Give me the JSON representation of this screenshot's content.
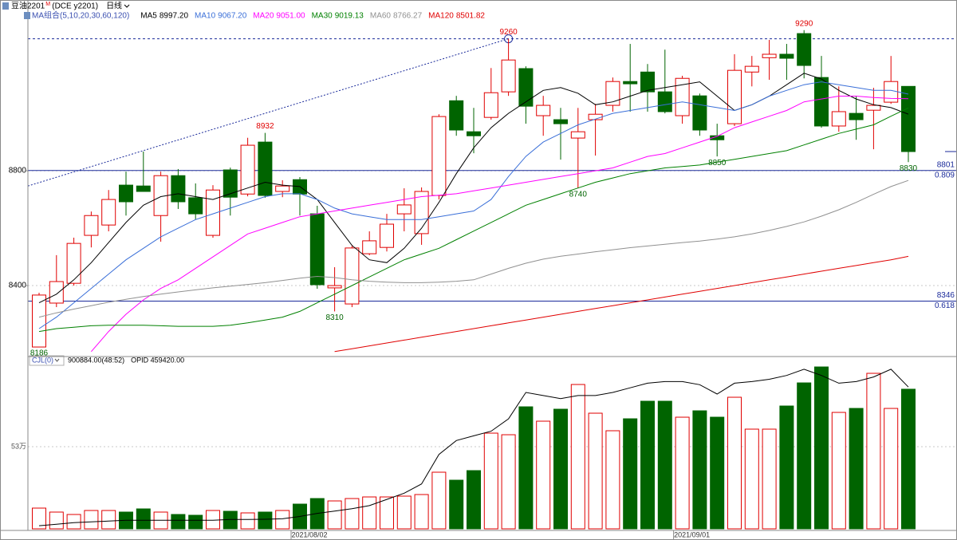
{
  "header": {
    "symbol": "豆油2201",
    "badge": "M",
    "exchange": "(DCE  y2201)",
    "period": "日线"
  },
  "chart_data": [
    {
      "type": "candlestick",
      "categories": [
        null,
        null,
        null,
        null,
        null,
        null,
        null,
        null,
        null,
        null,
        null,
        null,
        null,
        null,
        null,
        "2021/08/02",
        null,
        null,
        null,
        null,
        null,
        null,
        null,
        null,
        null,
        null,
        null,
        null,
        null,
        null,
        null,
        null,
        null,
        null,
        null,
        null,
        null,
        "2021/09/01",
        null,
        null,
        null,
        null,
        null,
        null,
        null,
        null,
        null,
        null,
        null,
        null,
        null
      ],
      "open": [
        8186,
        8339,
        8408,
        8575,
        8611,
        8750,
        8747,
        8644,
        8783,
        8706,
        8575,
        8803,
        8719,
        8900,
        8728,
        8769,
        8650,
        8392,
        8336,
        8511,
        8533,
        8650,
        8581,
        8714,
        9044,
        8936,
        8986,
        9075,
        9156,
        8992,
        8978,
        8914,
        8978,
        9028,
        9111,
        9144,
        9075,
        8992,
        9061,
        8922,
        8964,
        9144,
        9194,
        9206,
        9278,
        9125,
        8956,
        9000,
        9011,
        9039,
        9094
      ],
      "high": [
        8375,
        8506,
        8567,
        8658,
        8733,
        8797,
        8867,
        8797,
        8806,
        8756,
        8750,
        8811,
        8915,
        8932,
        8767,
        8778,
        8678,
        8464,
        8539,
        8589,
        8650,
        8739,
        8742,
        8997,
        9061,
        9019,
        9158,
        9260,
        9164,
        9061,
        9019,
        9019,
        9033,
        9125,
        9242,
        9172,
        9222,
        9131,
        9069,
        8964,
        9206,
        9200,
        9256,
        9242,
        9290,
        9200,
        9094,
        9061,
        9089,
        9200,
        9094
      ],
      "low": [
        8186,
        8325,
        8400,
        8533,
        8589,
        8644,
        8728,
        8553,
        8667,
        8631,
        8567,
        8644,
        8711,
        8706,
        8708,
        8644,
        8389,
        8310,
        8325,
        8506,
        8519,
        8589,
        8542,
        8700,
        8922,
        8861,
        8978,
        9061,
        8964,
        8922,
        8839,
        8740,
        8853,
        9006,
        9006,
        9006,
        9000,
        8964,
        8922,
        8850,
        8956,
        9094,
        9117,
        9117,
        9122,
        8950,
        8936,
        8908,
        8875,
        9033,
        8830
      ],
      "close": [
        8367,
        8414,
        8547,
        8644,
        8700,
        8692,
        8728,
        8783,
        8692,
        8650,
        8733,
        8708,
        8889,
        8714,
        8747,
        8719,
        8403,
        8400,
        8531,
        8556,
        8614,
        8681,
        8728,
        8989,
        8942,
        8922,
        9072,
        9186,
        9025,
        9028,
        8964,
        8936,
        8997,
        9111,
        9103,
        9075,
        9006,
        9122,
        8942,
        8908,
        9150,
        9164,
        9206,
        9192,
        9167,
        8956,
        9006,
        8978,
        9028,
        9111,
        8867
      ],
      "up_color": "#e00000",
      "down_color": "#006400",
      "ylim": [
        8160,
        9395
      ],
      "yticks": [
        8400,
        8800
      ],
      "grid": true,
      "legend_title": "MA组合(5,10,20,30,60,120)",
      "series": [
        {
          "name": "MA5",
          "color": "#000000",
          "latest": "8997.20",
          "values": [
            8340,
            8370,
            8420,
            8480,
            8550,
            8620,
            8680,
            8710,
            8720,
            8710,
            8700,
            8720,
            8740,
            8760,
            8750,
            8745,
            8700,
            8620,
            8540,
            8490,
            8480,
            8530,
            8600,
            8690,
            8790,
            8880,
            8950,
            9000,
            9040,
            9080,
            9090,
            9070,
            9030,
            9040,
            9060,
            9080,
            9090,
            9100,
            9110,
            9060,
            9010,
            9030,
            9060,
            9100,
            9140,
            9120,
            9080,
            9050,
            9030,
            9020,
            8997.2
          ]
        },
        {
          "name": "MA10",
          "color": "#3a6fd8",
          "latest": "9067.20",
          "values": [
            8250,
            8290,
            8340,
            8390,
            8440,
            8490,
            8530,
            8570,
            8600,
            8630,
            8650,
            8670,
            8690,
            8710,
            8720,
            8720,
            8700,
            8670,
            8650,
            8640,
            8630,
            8630,
            8630,
            8640,
            8650,
            8660,
            8700,
            8780,
            8850,
            8900,
            8930,
            8960,
            8980,
            9000,
            9010,
            9020,
            9030,
            9040,
            9030,
            9020,
            9010,
            9030,
            9060,
            9080,
            9100,
            9110,
            9100,
            9090,
            9080,
            9080,
            9067.2
          ]
        },
        {
          "name": "MA20",
          "color": "#ff00ff",
          "latest": "9051.00",
          "values": [
            null,
            null,
            null,
            8170,
            8240,
            8300,
            8350,
            8390,
            8420,
            8460,
            8500,
            8540,
            8580,
            8600,
            8620,
            8640,
            8650,
            8660,
            8670,
            8680,
            8690,
            8700,
            8710,
            8715,
            8720,
            8730,
            8740,
            8750,
            8760,
            8770,
            8780,
            8790,
            8800,
            8810,
            8830,
            8850,
            8860,
            8880,
            8900,
            8920,
            8950,
            8970,
            8990,
            9010,
            9040,
            9050,
            9060,
            9060,
            9055,
            9052,
            9051
          ]
        },
        {
          "name": "MA30",
          "color": "#008000",
          "latest": "9019.13",
          "values": [
            8240,
            8250,
            8255,
            8260,
            8262,
            8262,
            8262,
            8260,
            8258,
            8258,
            8258,
            8262,
            8270,
            8280,
            8290,
            8310,
            8340,
            8370,
            8400,
            8430,
            8460,
            8490,
            8510,
            8530,
            8560,
            8590,
            8620,
            8650,
            8680,
            8700,
            8720,
            8740,
            8760,
            8775,
            8790,
            8800,
            8810,
            8815,
            8820,
            8830,
            8840,
            8850,
            8860,
            8870,
            8890,
            8910,
            8930,
            8945,
            8960,
            8990,
            9019.13
          ]
        },
        {
          "name": "MA60",
          "color": "#909090",
          "latest": "8766.27",
          "values": [
            8290,
            8305,
            8318,
            8330,
            8342,
            8352,
            8362,
            8370,
            8378,
            8385,
            8392,
            8398,
            8404,
            8410,
            8418,
            8426,
            8432,
            8428,
            8420,
            8415,
            8412,
            8410,
            8410,
            8412,
            8415,
            8420,
            8440,
            8460,
            8478,
            8492,
            8502,
            8510,
            8518,
            8525,
            8532,
            8538,
            8544,
            8550,
            8555,
            8562,
            8570,
            8580,
            8592,
            8606,
            8622,
            8642,
            8664,
            8690,
            8718,
            8745,
            8766.27
          ]
        },
        {
          "name": "MA120",
          "color": "#e00000",
          "latest": "8501.82",
          "values": [
            null,
            null,
            null,
            null,
            null,
            null,
            null,
            null,
            null,
            null,
            null,
            null,
            null,
            null,
            null,
            null,
            null,
            8170,
            8180,
            8190,
            8200,
            8210,
            8220,
            8230,
            8240,
            8250,
            8260,
            8270,
            8280,
            8290,
            8300,
            8310,
            8320,
            8330,
            8340,
            8350,
            8360,
            8370,
            8380,
            8390,
            8400,
            8410,
            8420,
            8430,
            8440,
            8450,
            8460,
            8470,
            8480,
            8490,
            8501.82
          ]
        }
      ],
      "levels": [
        {
          "value": 8801,
          "ratio": 0.809
        },
        {
          "value": 8346,
          "ratio": 0.618
        }
      ],
      "level_color": "#1a2a9a",
      "trendline": [
        8747,
        9260
      ],
      "marked_highs": [
        13,
        27,
        44
      ],
      "marked_lows": [
        0,
        17,
        31,
        39,
        50
      ]
    },
    {
      "type": "volume",
      "title": "CJL(0)",
      "reading": "900884.00(48:52)",
      "opid": "OPID 459420.00",
      "values": [
        133800,
        108100,
        92600,
        118400,
        118400,
        108100,
        128600,
        108100,
        92600,
        87500,
        118400,
        113200,
        102900,
        108100,
        118400,
        159500,
        195500,
        180100,
        195500,
        205800,
        205800,
        211000,
        221300,
        365400,
        313900,
        375700,
        617500,
        607200,
        787300,
        694700,
        771900,
        931400,
        746200,
        633000,
        710100,
        823400,
        823400,
        720400,
        761600,
        720400,
        849100,
        643300,
        643300,
        792500,
        941700,
        1044600,
        751300,
        777000,
        1003500,
        777000,
        900884
      ],
      "line": {
        "color": "#000000",
        "values": [
          20000,
          30000,
          40000,
          45000,
          50000,
          55000,
          55000,
          55000,
          55000,
          55000,
          55000,
          60000,
          60000,
          62000,
          65000,
          80000,
          100000,
          115000,
          130000,
          150000,
          190000,
          230000,
          290000,
          480000,
          570000,
          600000,
          630000,
          710000,
          880000,
          860000,
          840000,
          860000,
          860000,
          880000,
          910000,
          940000,
          950000,
          950000,
          930000,
          870000,
          940000,
          950000,
          965000,
          990000,
          1030000,
          990000,
          940000,
          950000,
          980000,
          1030000,
          915000
        ]
      },
      "ylim": [
        0,
        1086000
      ],
      "yticks": [
        {
          "value": 530000,
          "label": "53万"
        }
      ],
      "grid": true
    }
  ]
}
